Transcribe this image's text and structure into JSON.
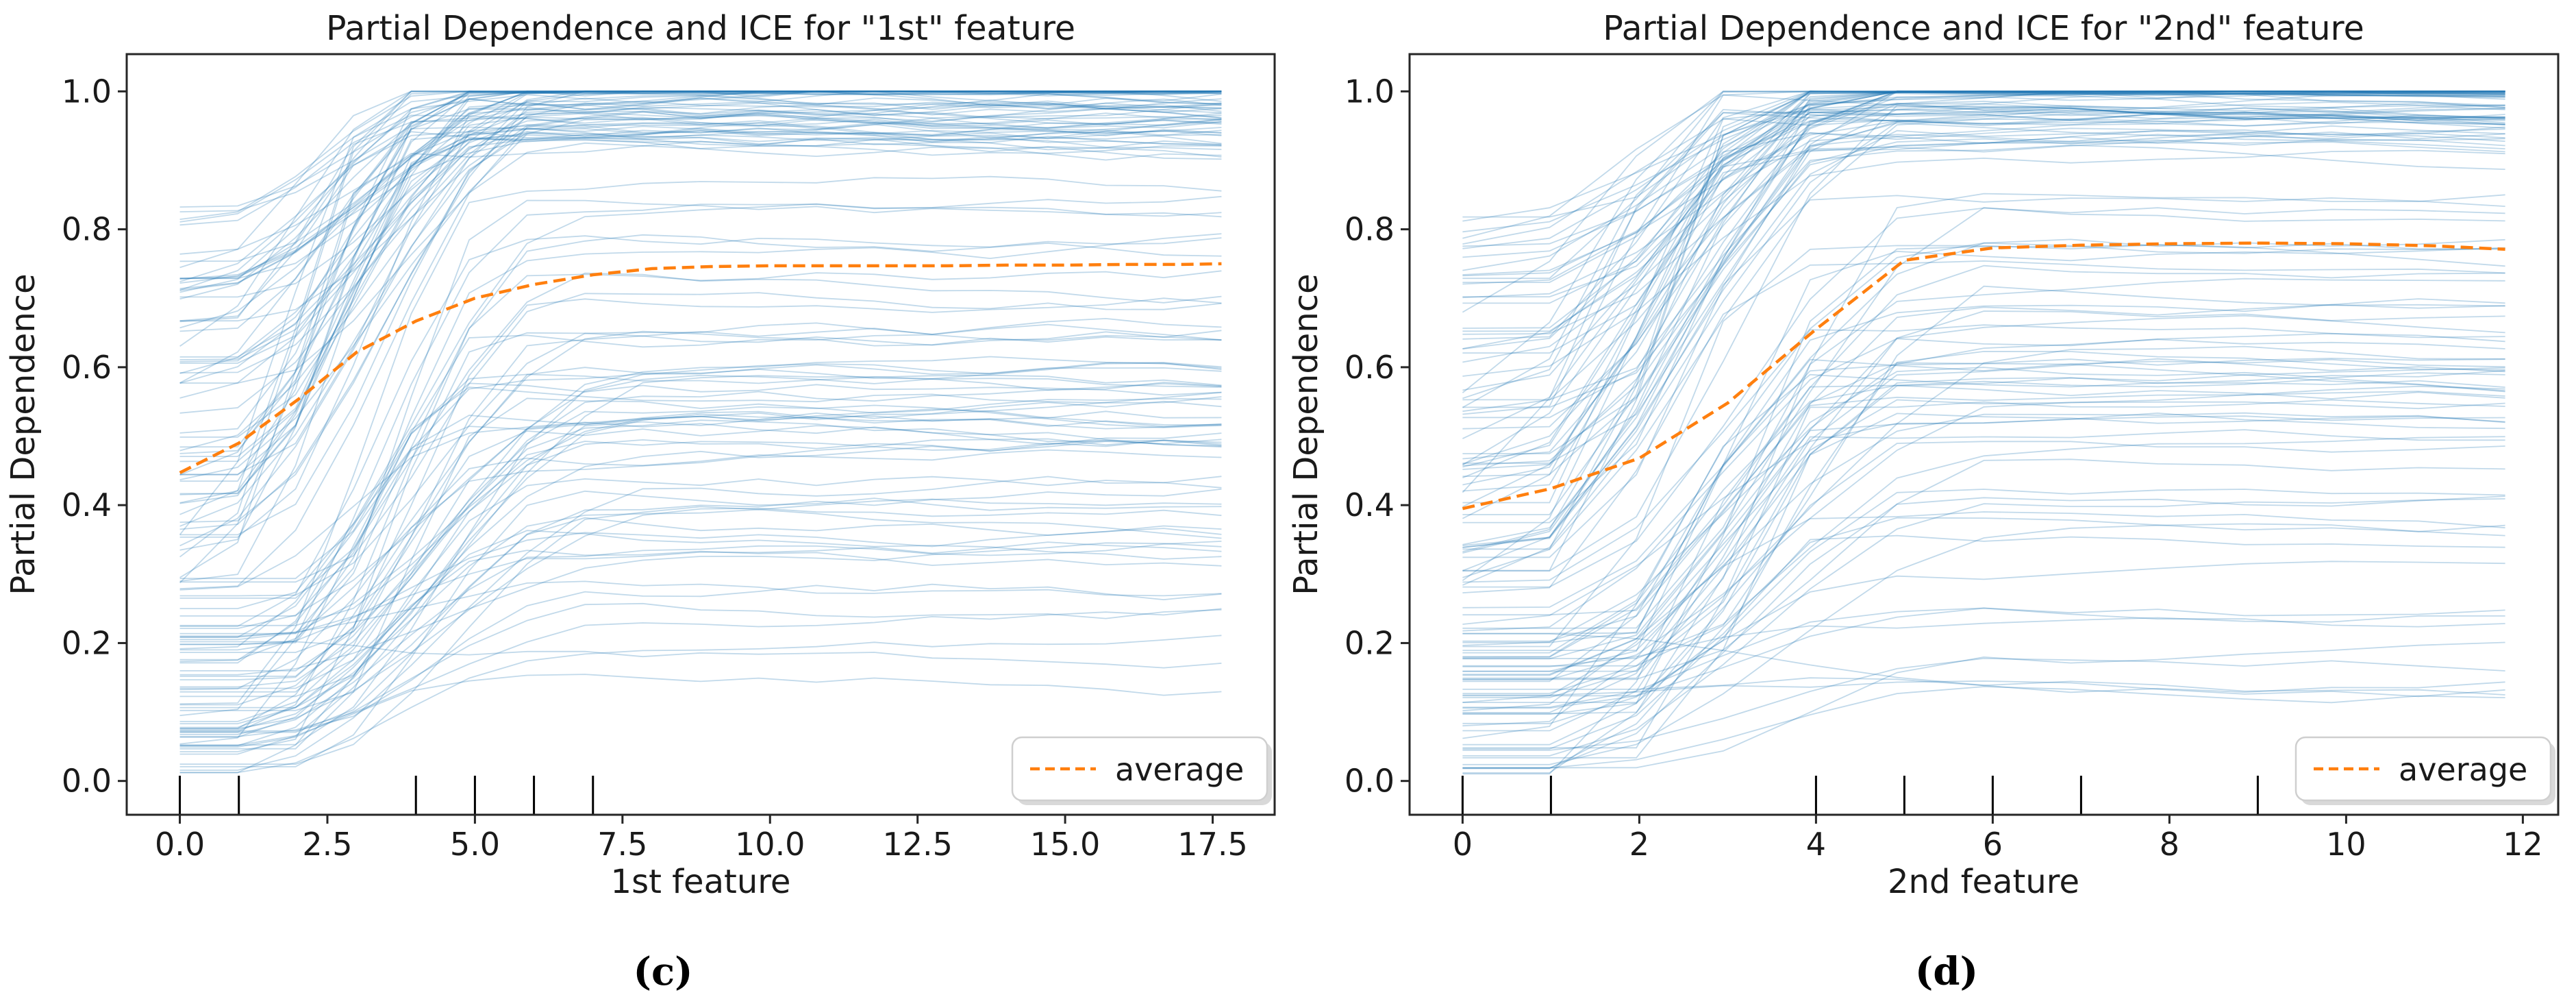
{
  "figure": {
    "type": "partial-dependence-ice-figure",
    "background": "#ffffff",
    "captions": {
      "left": "(c)",
      "right": "(d)"
    }
  },
  "colors": {
    "ice_line": "#1f77b4",
    "average_line": "#ff7f0e",
    "spine": "#262626",
    "text": "#1a1a1a",
    "rug": "#000000",
    "legend_border": "#cfcfcf"
  },
  "chart_data": [
    {
      "type": "line",
      "panel": "c",
      "title": "Partial Dependence and ICE for \"1st\" feature",
      "xlabel": "1st feature",
      "ylabel": "Partial Dependence",
      "x_ticks": [
        0.0,
        2.5,
        5.0,
        7.5,
        10.0,
        12.5,
        15.0,
        17.5
      ],
      "x_tick_labels": [
        "0.0",
        "2.5",
        "5.0",
        "7.5",
        "10.0",
        "12.5",
        "15.0",
        "17.5"
      ],
      "y_ticks": [
        0.0,
        0.2,
        0.4,
        0.6,
        0.8,
        1.0
      ],
      "y_tick_labels": [
        "0.0",
        "0.2",
        "0.4",
        "0.6",
        "0.8",
        "1.0"
      ],
      "xlim": [
        -0.9,
        18.55
      ],
      "ylim": [
        -0.049,
        1.054
      ],
      "grid_max": 17.65,
      "legend": {
        "label": "average",
        "position": "lower right",
        "line_style": "dashed",
        "line_color": "#ff7f0e"
      },
      "average_series": {
        "name": "average",
        "x": [
          0,
          1,
          2,
          3,
          4,
          5,
          6,
          7,
          8,
          9,
          10,
          11,
          12,
          13,
          14,
          15,
          16,
          17,
          17.65
        ],
        "y": [
          0.447,
          0.49,
          0.553,
          0.622,
          0.667,
          0.7,
          0.72,
          0.734,
          0.743,
          0.746,
          0.747,
          0.747,
          0.747,
          0.747,
          0.748,
          0.748,
          0.749,
          0.749,
          0.75
        ]
      },
      "ice": {
        "description": "individual conditional expectation curves",
        "count": 130,
        "color": "#1f77b4",
        "alpha": 0.28,
        "grid_points": 19
      },
      "rug_x": [
        0,
        1,
        4,
        5,
        6,
        7
      ],
      "caption": "(c)"
    },
    {
      "type": "line",
      "panel": "d",
      "title": "Partial Dependence and ICE for \"2nd\" feature",
      "xlabel": "2nd feature",
      "ylabel": "Partial Dependence",
      "x_ticks": [
        0,
        2,
        4,
        6,
        8,
        10,
        12
      ],
      "x_tick_labels": [
        "0",
        "2",
        "4",
        "6",
        "8",
        "10",
        "12"
      ],
      "y_ticks": [
        0.0,
        0.2,
        0.4,
        0.6,
        0.8,
        1.0
      ],
      "y_tick_labels": [
        "0.0",
        "0.2",
        "0.4",
        "0.6",
        "0.8",
        "1.0"
      ],
      "xlim": [
        -0.6,
        12.4
      ],
      "ylim": [
        -0.049,
        1.054
      ],
      "grid_max": 11.8,
      "legend": {
        "label": "average",
        "position": "lower right",
        "line_style": "dashed",
        "line_color": "#ff7f0e"
      },
      "average_series": {
        "name": "average",
        "x": [
          0,
          1,
          2,
          3,
          4,
          5,
          6,
          7,
          8,
          9,
          10,
          11,
          11.8
        ],
        "y": [
          0.395,
          0.424,
          0.468,
          0.548,
          0.655,
          0.755,
          0.773,
          0.777,
          0.779,
          0.78,
          0.779,
          0.776,
          0.771
        ]
      },
      "ice": {
        "description": "individual conditional expectation curves",
        "count": 130,
        "color": "#1f77b4",
        "alpha": 0.28,
        "grid_points": 13
      },
      "rug_x": [
        0,
        1,
        4,
        5,
        6,
        7,
        9
      ],
      "caption": "(d)"
    }
  ]
}
